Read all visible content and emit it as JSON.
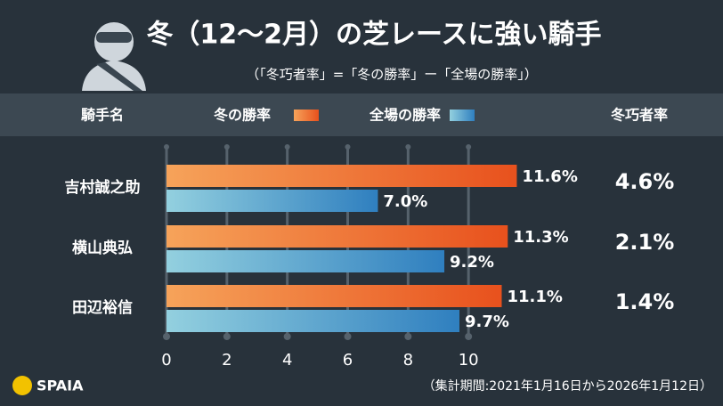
{
  "chart_data": {
    "type": "bar",
    "orientation": "horizontal",
    "title": "冬（12～2月）の芝レースに強い騎手",
    "subtitle": "（「冬巧者率」=「冬の勝率」ー「全場の勝率」）",
    "category_header": "騎手名",
    "categories": [
      "吉村誠之助",
      "横山典弘",
      "田辺裕信"
    ],
    "series": [
      {
        "name": "冬の勝率",
        "color": "#e8511d",
        "values": [
          11.6,
          11.3,
          11.1
        ],
        "value_labels": [
          "11.6%",
          "11.3%",
          "11.1%"
        ]
      },
      {
        "name": "全場の勝率",
        "color": "#2f7fbf",
        "values": [
          7.0,
          9.2,
          9.7
        ],
        "value_labels": [
          "7.0%",
          "9.2%",
          "9.7%"
        ]
      }
    ],
    "extra_column": {
      "name": "冬巧者率",
      "values": [
        4.6,
        2.1,
        1.4
      ],
      "value_labels": [
        "4.6%",
        "2.1%",
        "1.4%"
      ]
    },
    "xlim": [
      0,
      12
    ],
    "xticks": [
      0,
      2,
      4,
      6,
      8,
      10
    ],
    "grid": true,
    "logo": "SPAIA",
    "note": "（集計期間:2021年1月16日から2026年1月12日）"
  }
}
